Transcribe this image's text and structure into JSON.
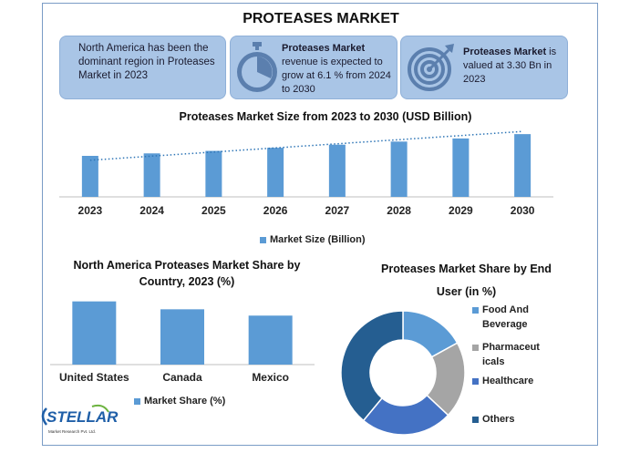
{
  "title": "PROTEASES MARKET",
  "info_boxes": [
    {
      "text": "North America has been the dominant region in Proteases Market in 2023"
    },
    {
      "bold": "Proteases Market",
      "text": " revenue is expected to grow at 6.1 % from 2024 to 2030",
      "icon": "stopwatch-icon"
    },
    {
      "bold": "Proteases Market",
      "text": " is valued at 3.30 Bn in 2023",
      "icon": "target-icon"
    }
  ],
  "colors": {
    "bar": "#5b9bd5",
    "box": "#a9c5e6",
    "trend": "#2e75b6",
    "pie": [
      "#5b9bd5",
      "#a5a5a5",
      "#4472c4",
      "#255e91"
    ]
  },
  "chart_data": [
    {
      "type": "bar",
      "title": "Proteases Market Size from 2023 to 2030 (USD Billion)",
      "categories": [
        "2023",
        "2024",
        "2025",
        "2026",
        "2027",
        "2028",
        "2029",
        "2030"
      ],
      "series": [
        {
          "name": "Market Size (Billion)",
          "values": [
            3.3,
            3.5,
            3.7,
            3.95,
            4.2,
            4.45,
            4.7,
            5.05
          ]
        }
      ],
      "trendline": "linear-dotted",
      "legend_position": "bottom",
      "ylim": [
        0,
        5.5
      ]
    },
    {
      "type": "bar",
      "title": "North America Proteases Market  Share by Country, 2023 (%)",
      "categories": [
        "United States",
        "Canada",
        "Mexico"
      ],
      "series": [
        {
          "name": "Market Share (%)",
          "values": [
            40,
            35,
            31
          ]
        }
      ],
      "legend_position": "bottom",
      "ylim": [
        0,
        45
      ]
    },
    {
      "type": "pie",
      "title": "Proteases Market Share by End User  (in %)",
      "labels": [
        "Food And Beverage",
        "Pharmaceuticals",
        "Healthcare",
        "Others"
      ],
      "legend_labels": [
        "Food And\nBeverage",
        "Pharmaceut\nicals",
        "Healthcare",
        "Others"
      ],
      "values": [
        17,
        20,
        24,
        39
      ],
      "donut": true,
      "legend_position": "right"
    }
  ],
  "logo": {
    "text": "STELLAR",
    "subtext": "Market Research Pvt. Ltd."
  }
}
